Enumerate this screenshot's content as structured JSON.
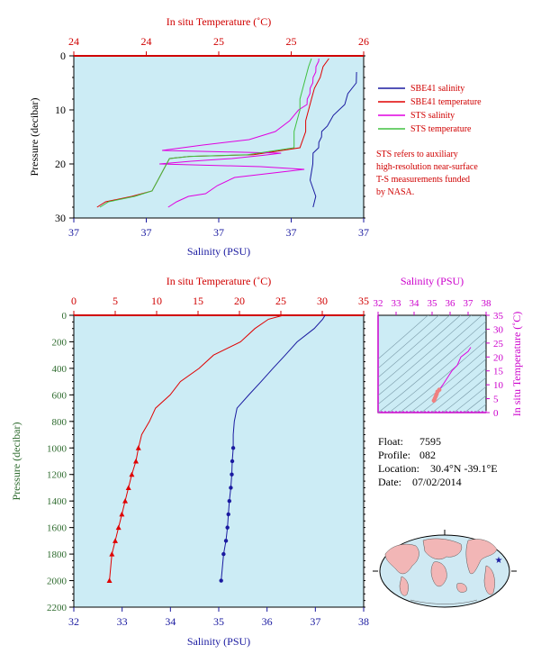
{
  "chart_data": [
    {
      "type": "line",
      "title": "",
      "top_axis": {
        "label": "In situ Temperature (˚C)",
        "ticks": [
          "24",
          "24",
          "25",
          "25",
          "26"
        ]
      },
      "bottom_axis": {
        "label": "Salinity (PSU)",
        "ticks": [
          "37",
          "37",
          "37",
          "37",
          "37"
        ]
      },
      "left_axis": {
        "label": "Pressure (decibar)",
        "ticks": [
          "0",
          "10",
          "20",
          "30"
        ],
        "ylim": [
          0,
          30
        ],
        "inverted": true
      },
      "legend": [
        {
          "name": "SBE41 salinity",
          "color": "#1a1aa0"
        },
        {
          "name": "SBE41 temperature",
          "color": "#e00000"
        },
        {
          "name": "STS salinity",
          "color": "#e000e0"
        },
        {
          "name": "STS temperature",
          "color": "#40c040"
        }
      ],
      "legend_placement": "right",
      "note": [
        "STS refers to auxiliary",
        "high-resolution near-surface",
        "T-S measurements funded",
        "by NASA."
      ],
      "series": [
        {
          "name": "SBE41 salinity",
          "x_frac": [
            0.98,
            0.97,
            0.95,
            0.93,
            0.9,
            0.87,
            0.86,
            0.85,
            0.85,
            0.84,
            0.83,
            0.82,
            0.82,
            0.83,
            0.83
          ],
          "p": [
            3,
            5,
            7,
            9,
            11,
            13,
            14,
            15,
            16,
            17,
            18,
            20,
            23,
            26,
            28
          ]
        },
        {
          "name": "SBE41 temperature",
          "x_frac": [
            0.88,
            0.86,
            0.85,
            0.83,
            0.82,
            0.81,
            0.8,
            0.8,
            0.78,
            0.62,
            0.4,
            0.33,
            0.31,
            0.29,
            0.27,
            0.2,
            0.11,
            0.08
          ],
          "p": [
            0.5,
            2,
            4,
            6,
            8,
            10,
            12,
            14,
            17,
            18.3,
            18.6,
            19,
            21,
            23,
            25,
            26,
            27,
            28
          ]
        },
        {
          "name": "STS salinity",
          "x_frac": [
            0.85,
            0.84,
            0.84,
            0.83,
            0.83,
            0.82,
            0.82,
            0.81,
            0.81,
            0.8,
            0.78,
            0.74,
            0.7,
            0.6,
            0.45,
            0.3,
            0.72,
            0.65,
            0.55,
            0.4,
            0.3,
            0.64,
            0.8,
            0.55,
            0.5,
            0.45,
            0.4,
            0.35,
            0.33
          ],
          "p": [
            0.5,
            1,
            2,
            3,
            4,
            5,
            6,
            7,
            8,
            9,
            10,
            12,
            14,
            15.5,
            16.5,
            17.5,
            18,
            18.4,
            19,
            19.5,
            20,
            20.5,
            21,
            22.5,
            24,
            25.5,
            26,
            27,
            28
          ]
        },
        {
          "name": "STS temperature",
          "x_frac": [
            0.82,
            0.81,
            0.8,
            0.79,
            0.78,
            0.78,
            0.77,
            0.76,
            0.76,
            0.6,
            0.4,
            0.33,
            0.31,
            0.29,
            0.27,
            0.21,
            0.12,
            0.09
          ],
          "p": [
            0.5,
            2,
            4,
            6,
            8,
            10,
            12,
            14,
            17,
            18.3,
            18.6,
            19,
            21,
            23,
            25,
            26,
            27,
            28
          ]
        }
      ]
    },
    {
      "type": "line",
      "title": "",
      "top_axis": {
        "label": "In situ Temperature (˚C)",
        "ticks": [
          "0",
          "5",
          "10",
          "15",
          "20",
          "25",
          "30",
          "35"
        ],
        "xlim": [
          0,
          35
        ]
      },
      "bottom_axis": {
        "label": "Salinity (PSU)",
        "ticks": [
          "32",
          "33",
          "34",
          "35",
          "36",
          "37",
          "38"
        ],
        "xlim": [
          32,
          38
        ]
      },
      "left_axis": {
        "label": "Pressure (decibar)",
        "ticks": [
          "0",
          "200",
          "400",
          "600",
          "800",
          "1000",
          "1200",
          "1400",
          "1600",
          "1800",
          "2000",
          "2200"
        ],
        "ylim": [
          0,
          2200
        ],
        "inverted": true
      },
      "series": [
        {
          "name": "temperature",
          "axis": "top",
          "x": [
            25.3,
            23.5,
            22.0,
            20.0,
            17.0,
            15.0,
            13.0,
            11.5,
            10.0,
            9.0,
            8.2,
            7.8,
            7.5,
            7.0,
            6.6,
            6.2,
            5.8,
            5.4,
            5.0,
            4.6,
            4.3
          ],
          "y": [
            0,
            30,
            100,
            200,
            300,
            400,
            500,
            600,
            700,
            800,
            900,
            1000,
            1100,
            1200,
            1300,
            1400,
            1500,
            1600,
            1700,
            1800,
            2000
          ]
        },
        {
          "name": "salinity",
          "axis": "bottom",
          "x": [
            37.2,
            37.15,
            37.0,
            36.6,
            36.4,
            36.1,
            35.9,
            35.6,
            35.4,
            35.3,
            35.3,
            35.3,
            35.28,
            35.27,
            35.25,
            35.22,
            35.2,
            35.18,
            35.15,
            35.1,
            35.05
          ],
          "y": [
            0,
            30,
            100,
            200,
            300,
            400,
            500,
            600,
            700,
            800,
            900,
            1000,
            1100,
            1200,
            1300,
            1400,
            1500,
            1600,
            1700,
            1800,
            2000
          ]
        }
      ]
    },
    {
      "type": "scatter",
      "title": "",
      "top_axis": {
        "label": "Salinity (PSU)",
        "ticks": [
          "32",
          "33",
          "34",
          "35",
          "36",
          "37",
          "38"
        ],
        "xlim": [
          32,
          38
        ]
      },
      "right_axis": {
        "label": "In situ Temperature (˚C)",
        "ticks": [
          "0",
          "5",
          "10",
          "15",
          "20",
          "25",
          "30",
          "35"
        ],
        "ylim": [
          0,
          35
        ]
      },
      "points": {
        "salinity": [
          35.1,
          35.15,
          35.2,
          35.25,
          35.3,
          35.4,
          35.6,
          35.9,
          36.1,
          36.4,
          36.6,
          37.0,
          37.15
        ],
        "temperature": [
          4.3,
          5.0,
          5.8,
          6.6,
          7.5,
          8.2,
          10.0,
          13.0,
          15.0,
          17.0,
          20.0,
          22.0,
          23.5
        ]
      }
    }
  ],
  "info": {
    "float_label": "Float:",
    "float_value": "7595",
    "profile_label": "Profile:",
    "profile_value": "082",
    "location_label": "Location:",
    "location_value": "30.4°N  -39.1°E",
    "date_label": "Date:",
    "date_value": "07/02/2014"
  },
  "colors": {
    "background": "#ccecf5",
    "temperature": "#e00000",
    "salinity": "#1a1aa0",
    "magenta": "#cc00cc"
  }
}
